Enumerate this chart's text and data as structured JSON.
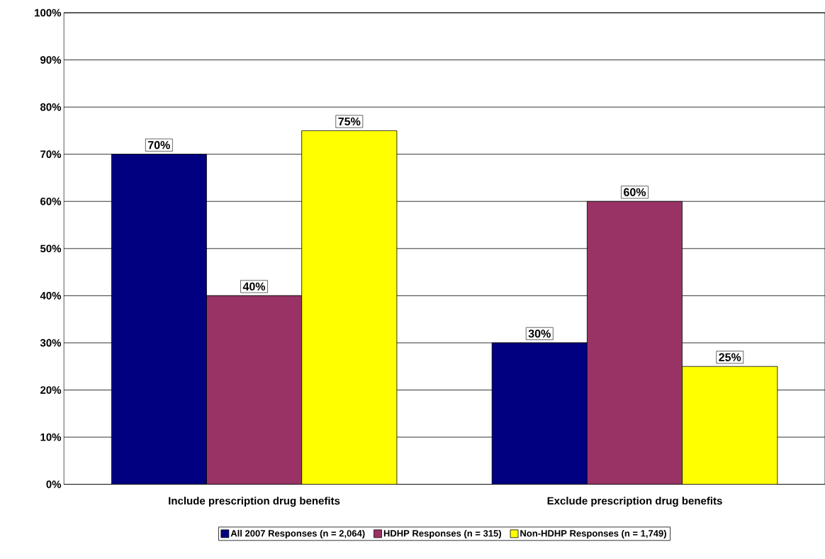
{
  "chart_data": {
    "type": "bar",
    "categories": [
      "Include prescription drug benefits",
      "Exclude prescription drug benefits"
    ],
    "series": [
      {
        "name": "All 2007 Responses (n = 2,064)",
        "color": "#000080",
        "values": [
          70,
          30
        ],
        "value_labels": [
          "70%",
          "30%"
        ]
      },
      {
        "name": "HDHP Responses (n = 315)",
        "color": "#993366",
        "values": [
          40,
          60
        ],
        "value_labels": [
          "40%",
          "60%"
        ]
      },
      {
        "name": "Non-HDHP Responses (n = 1,749)",
        "color": "#ffff00",
        "values": [
          75,
          25
        ],
        "value_labels": [
          "75%",
          "25%"
        ]
      }
    ],
    "ylim": [
      0,
      100
    ],
    "yticks": [
      {
        "value": 0,
        "label": "0%"
      },
      {
        "value": 10,
        "label": "10%"
      },
      {
        "value": 20,
        "label": "20%"
      },
      {
        "value": 30,
        "label": "30%"
      },
      {
        "value": 40,
        "label": "40%"
      },
      {
        "value": 50,
        "label": "50%"
      },
      {
        "value": 60,
        "label": "60%"
      },
      {
        "value": 70,
        "label": "70%"
      },
      {
        "value": 80,
        "label": "80%"
      },
      {
        "value": 90,
        "label": "90%"
      },
      {
        "value": 100,
        "label": "100%"
      }
    ],
    "grid": "y",
    "legend": "bottom"
  }
}
